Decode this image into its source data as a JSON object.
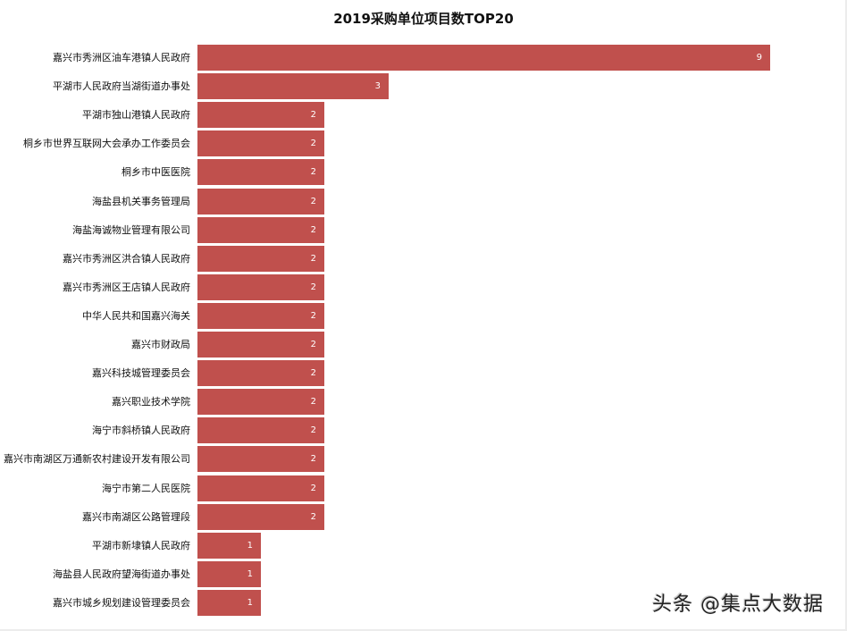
{
  "chart_data": {
    "type": "bar",
    "orientation": "horizontal",
    "title": "2019采购单位项目数TOP20",
    "xlabel": "",
    "ylabel": "",
    "grid": false,
    "legend": null,
    "bar_color": "#c0504d",
    "data_labels": true,
    "categories": [
      "嘉兴市秀洲区油车港镇人民政府",
      "平湖市人民政府当湖街道办事处",
      "平湖市独山港镇人民政府",
      "桐乡市世界互联网大会承办工作委员会",
      "桐乡市中医医院",
      "海盐县机关事务管理局",
      "海盐海诚物业管理有限公司",
      "嘉兴市秀洲区洪合镇人民政府",
      "嘉兴市秀洲区王店镇人民政府",
      "中华人民共和国嘉兴海关",
      "嘉兴市财政局",
      "嘉兴科技城管理委员会",
      "嘉兴职业技术学院",
      "海宁市斜桥镇人民政府",
      "嘉兴市南湖区万通新农村建设开发有限公司",
      "海宁市第二人民医院",
      "嘉兴市南湖区公路管理段",
      "平湖市新埭镇人民政府",
      "海盐县人民政府望海街道办事处",
      "嘉兴市城乡规划建设管理委员会"
    ],
    "values": [
      9,
      3,
      2,
      2,
      2,
      2,
      2,
      2,
      2,
      2,
      2,
      2,
      2,
      2,
      2,
      2,
      2,
      1,
      1,
      1
    ]
  },
  "watermark": "头条 @集点大数据"
}
